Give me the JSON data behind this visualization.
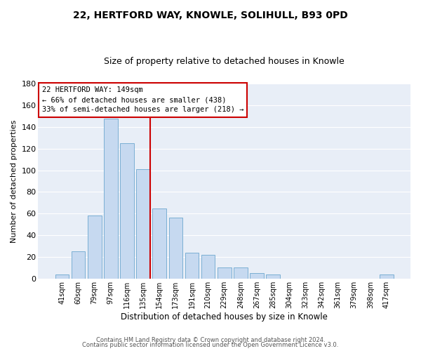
{
  "title": "22, HERTFORD WAY, KNOWLE, SOLIHULL, B93 0PD",
  "subtitle": "Size of property relative to detached houses in Knowle",
  "xlabel": "Distribution of detached houses by size in Knowle",
  "ylabel": "Number of detached properties",
  "footer_line1": "Contains HM Land Registry data © Crown copyright and database right 2024.",
  "footer_line2": "Contains public sector information licensed under the Open Government Licence v3.0.",
  "bar_labels": [
    "41sqm",
    "60sqm",
    "79sqm",
    "97sqm",
    "116sqm",
    "135sqm",
    "154sqm",
    "173sqm",
    "191sqm",
    "210sqm",
    "229sqm",
    "248sqm",
    "267sqm",
    "285sqm",
    "304sqm",
    "323sqm",
    "342sqm",
    "361sqm",
    "379sqm",
    "398sqm",
    "417sqm"
  ],
  "bar_values": [
    4,
    25,
    58,
    148,
    125,
    101,
    65,
    56,
    24,
    22,
    10,
    10,
    5,
    4,
    0,
    0,
    0,
    0,
    0,
    0,
    4
  ],
  "bar_color": "#c6d9f0",
  "bar_edge_color": "#7bafd4",
  "ylim": [
    0,
    180
  ],
  "yticks": [
    0,
    20,
    40,
    60,
    80,
    100,
    120,
    140,
    160,
    180
  ],
  "property_line_label": "22 HERTFORD WAY: 149sqm",
  "annotation_line1": "← 66% of detached houses are smaller (438)",
  "annotation_line2": "33% of semi-detached houses are larger (218) →",
  "grid_color": "#d0d8e8",
  "bg_color": "#ffffff",
  "plot_bg_color": "#e8eef7",
  "title_fontsize": 10,
  "subtitle_fontsize": 9
}
